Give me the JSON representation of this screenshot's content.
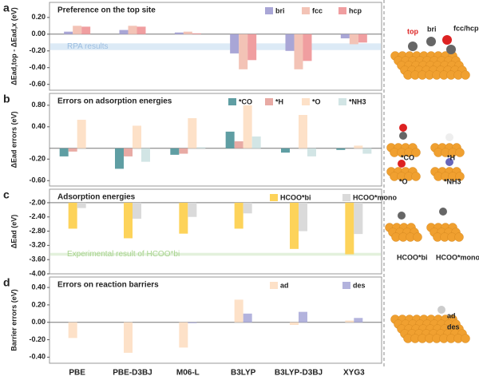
{
  "chart_data": [
    {
      "type": "bar",
      "letter": "a",
      "title": "Preference on the top site",
      "ylabel": "ΔEad,top - ΔEad,x (eV)",
      "categories": [
        "PBE",
        "PBE-D3BJ",
        "M06-L",
        "B3LYP",
        "B3LYP-D3BJ",
        "XYG3"
      ],
      "series": [
        {
          "name": "bri",
          "color": "#a9a6d6",
          "values": [
            0.03,
            0.05,
            0.02,
            -0.23,
            -0.2,
            -0.05
          ]
        },
        {
          "name": "fcc",
          "color": "#f3c3b6",
          "values": [
            0.1,
            0.1,
            0.03,
            -0.42,
            -0.42,
            -0.12
          ]
        },
        {
          "name": "hcp",
          "color": "#f09ea0",
          "values": [
            0.09,
            0.09,
            0.01,
            -0.31,
            -0.32,
            -0.1
          ]
        }
      ],
      "ylim": [
        -0.67,
        0.38
      ],
      "yticks": [
        {
          "value": 0.2,
          "label": "0.20"
        },
        {
          "value": 0,
          "label": "0.00"
        },
        {
          "value": -0.2,
          "label": "-0.20"
        },
        {
          "value": -0.4,
          "label": "-0.40"
        },
        {
          "value": -0.6,
          "label": "-0.60"
        }
      ],
      "band": {
        "label": "RPA results",
        "range": [
          -0.19,
          -0.11
        ],
        "color": "#dceaf6"
      }
    },
    {
      "type": "bar",
      "letter": "b",
      "title": "Errors on adsorption energies",
      "ylabel": "ΔEad errors (eV)",
      "categories": [
        "PBE",
        "PBE-D3BJ",
        "M06-L",
        "B3LYP",
        "B3LYP-D3BJ",
        "XYG3"
      ],
      "series": [
        {
          "name": "*CO",
          "color": "#5f9ea3",
          "values": [
            -0.15,
            -0.38,
            -0.12,
            0.31,
            -0.08,
            -0.03
          ]
        },
        {
          "name": "*H",
          "color": "#e8aaa4",
          "values": [
            -0.06,
            -0.15,
            -0.1,
            0.13,
            0,
            0
          ]
        },
        {
          "name": "*O",
          "color": "#fde1c8",
          "values": [
            0.53,
            0.42,
            0.56,
            0.8,
            0.62,
            0.05
          ]
        },
        {
          "name": "*NH3",
          "color": "#d2e5e5",
          "values": [
            0,
            -0.25,
            0.02,
            0.22,
            -0.15,
            -0.1
          ]
        }
      ],
      "ylim": [
        -0.7,
        1.02
      ],
      "yticks": [
        {
          "value": 0.8,
          "label": "0.80"
        },
        {
          "value": 0.4,
          "label": "0.40"
        },
        {
          "value": -0.2,
          "label": "-0.20"
        },
        {
          "value": -0.6,
          "label": "-0.60"
        }
      ]
    },
    {
      "type": "bar",
      "letter": "c",
      "title": "Adsorption energies",
      "ylabel": "ΔEad (eV)",
      "base": -2,
      "categories": [
        "PBE",
        "PBE-D3BJ",
        "M06-L",
        "B3LYP",
        "B3LYP-D3BJ",
        "XYG3"
      ],
      "series": [
        {
          "name": "HCOO*bi",
          "color": "#fdd35a",
          "values": [
            -2.73,
            -3.0,
            -2.87,
            -2.73,
            -3.3,
            -3.45
          ]
        },
        {
          "name": "HCOO*mono",
          "color": "#dadada",
          "values": [
            -2.15,
            -2.45,
            -2.4,
            -2.3,
            -2.8,
            -2.88
          ]
        }
      ],
      "ylim": [
        -4.0,
        -1.62
      ],
      "yticks": [
        {
          "value": -2,
          "label": "-2.00"
        },
        {
          "value": -2.4,
          "label": "-2.40"
        },
        {
          "value": -2.8,
          "label": "-2.80"
        },
        {
          "value": -3.2,
          "label": "-3.20"
        },
        {
          "value": -3.6,
          "label": "-3.60"
        },
        {
          "value": -4,
          "label": "-4.00"
        }
      ],
      "band": {
        "label": "Experimental result of HCOO*bi",
        "range": [
          -3.49,
          -3.41
        ],
        "color": "#e3f1dc"
      }
    },
    {
      "type": "bar",
      "letter": "d",
      "title": "Errors on reaction barriers",
      "ylabel": "Barrier errors (eV)",
      "categories": [
        "PBE",
        "PBE-D3BJ",
        "M06-L",
        "B3LYP",
        "B3LYP-D3BJ",
        "XYG3"
      ],
      "series": [
        {
          "name": "ad",
          "color": "#fde1c8",
          "values": [
            -0.18,
            -0.35,
            -0.29,
            0.26,
            -0.03,
            0.02
          ]
        },
        {
          "name": "des",
          "color": "#b3b3dd",
          "values": [
            0,
            0,
            -0.01,
            0.1,
            0.12,
            0.05
          ]
        }
      ],
      "ylim": [
        -0.47,
        0.52
      ],
      "yticks": [
        {
          "value": 0.4,
          "label": "0.40"
        },
        {
          "value": 0.2,
          "label": "0.20"
        },
        {
          "value": 0,
          "label": "0.00"
        },
        {
          "value": -0.2,
          "label": "-0.20"
        },
        {
          "value": -0.4,
          "label": "-0.40"
        }
      ]
    }
  ],
  "images": {
    "labels": [
      "top",
      "bri",
      "fcc/hcp",
      "*CO",
      "*H",
      "*O",
      "*NH3",
      "HCOO*bi",
      "HCOO*mono",
      "ad",
      "des"
    ]
  }
}
